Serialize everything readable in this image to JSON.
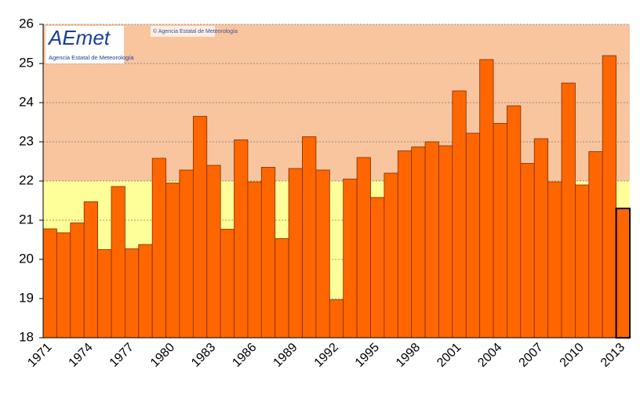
{
  "chart_data": {
    "type": "bar",
    "logo_text": "AEmet",
    "logo_subtitle": "Agencia Estatal de Meteorología",
    "watermark": "© Agencia Estatal de Meteorología",
    "categories": [
      "1971",
      null,
      null,
      "1974",
      null,
      null,
      "1977",
      null,
      null,
      "1980",
      null,
      null,
      "1983",
      null,
      null,
      "1986",
      null,
      null,
      "1989",
      null,
      null,
      "1992",
      null,
      null,
      "1995",
      null,
      null,
      "1998",
      null,
      null,
      "2001",
      null,
      null,
      "2004",
      null,
      null,
      "2007",
      null,
      null,
      "2010",
      null,
      null,
      "2013"
    ],
    "values": [
      20.78,
      20.68,
      20.93,
      21.47,
      20.25,
      21.86,
      20.27,
      20.38,
      22.58,
      21.95,
      22.28,
      23.65,
      22.4,
      20.77,
      23.05,
      21.98,
      22.35,
      20.53,
      22.32,
      23.13,
      22.28,
      18.97,
      22.05,
      22.6,
      21.58,
      22.2,
      22.77,
      22.87,
      23.0,
      22.9,
      24.3,
      23.22,
      25.1,
      23.47,
      23.92,
      22.45,
      23.08,
      21.98,
      24.5,
      21.9,
      22.75,
      25.2,
      21.3
    ],
    "color": "#ff6600",
    "edge_color": "#7a2e00",
    "highlight": {
      "index": 42,
      "edge": "#000000"
    },
    "bands": [
      {
        "from": 18,
        "to": 22,
        "color": "#ffff99"
      },
      {
        "from": 22,
        "to": 26,
        "color": "#f9c59e"
      }
    ],
    "ylim": [
      18,
      26
    ],
    "yticks": [
      18,
      19,
      20,
      21,
      22,
      23,
      24,
      25,
      26
    ],
    "grid": true
  }
}
